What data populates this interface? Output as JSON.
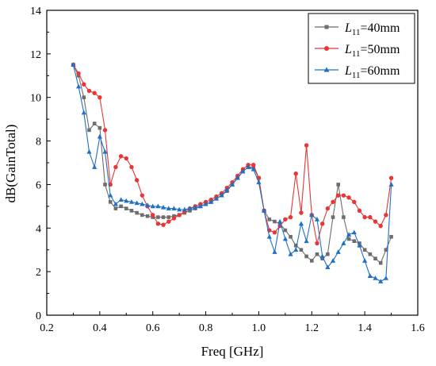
{
  "chart_data": {
    "type": "line",
    "xlabel": "Freq [GHz]",
    "ylabel": "dB(GainTotal)",
    "xlim": [
      0.2,
      1.6
    ],
    "ylim": [
      0,
      14
    ],
    "x_ticks": [
      "0.2",
      "0.4",
      "0.6",
      "0.8",
      "1.0",
      "1.2",
      "1.4",
      "1.6"
    ],
    "y_ticks": [
      "0",
      "2",
      "4",
      "6",
      "8",
      "10",
      "12",
      "14"
    ],
    "grid": false,
    "legend_position": "top-right",
    "series": [
      {
        "name_main": "L",
        "name_sub": "11",
        "name_rest": "=40mm",
        "color": "#6d6d6d",
        "marker": "square",
        "x": [
          0.3,
          0.32,
          0.34,
          0.36,
          0.38,
          0.4,
          0.42,
          0.44,
          0.46,
          0.48,
          0.5,
          0.52,
          0.54,
          0.56,
          0.58,
          0.6,
          0.62,
          0.64,
          0.66,
          0.68,
          0.7,
          0.72,
          0.74,
          0.76,
          0.78,
          0.8,
          0.82,
          0.84,
          0.86,
          0.88,
          0.9,
          0.92,
          0.94,
          0.96,
          0.98,
          1.0,
          1.02,
          1.04,
          1.06,
          1.08,
          1.1,
          1.12,
          1.14,
          1.16,
          1.18,
          1.2,
          1.22,
          1.24,
          1.26,
          1.28,
          1.3,
          1.32,
          1.34,
          1.36,
          1.38,
          1.4,
          1.42,
          1.44,
          1.46,
          1.48,
          1.5
        ],
        "y": [
          11.5,
          11.0,
          10.0,
          8.5,
          8.8,
          8.6,
          6.0,
          5.2,
          4.9,
          5.0,
          4.9,
          4.8,
          4.7,
          4.6,
          4.55,
          4.5,
          4.5,
          4.5,
          4.5,
          4.55,
          4.6,
          4.7,
          4.8,
          4.9,
          5.0,
          5.1,
          5.2,
          5.35,
          5.5,
          5.7,
          6.0,
          6.3,
          6.6,
          6.8,
          6.8,
          6.3,
          4.8,
          4.4,
          4.3,
          4.2,
          3.9,
          3.6,
          3.2,
          3.0,
          2.7,
          2.5,
          2.8,
          2.6,
          2.8,
          4.5,
          6.0,
          4.5,
          3.5,
          3.4,
          3.3,
          3.0,
          2.8,
          2.6,
          2.4,
          3.0,
          3.6
        ]
      },
      {
        "name_main": "L",
        "name_sub": "11",
        "name_rest": "=50mm",
        "color": "#e83535",
        "marker": "circle",
        "x": [
          0.3,
          0.32,
          0.34,
          0.36,
          0.38,
          0.4,
          0.42,
          0.44,
          0.46,
          0.48,
          0.5,
          0.52,
          0.54,
          0.56,
          0.58,
          0.6,
          0.62,
          0.64,
          0.66,
          0.68,
          0.7,
          0.72,
          0.74,
          0.76,
          0.78,
          0.8,
          0.82,
          0.84,
          0.86,
          0.88,
          0.9,
          0.92,
          0.94,
          0.96,
          0.98,
          1.0,
          1.02,
          1.04,
          1.06,
          1.08,
          1.1,
          1.12,
          1.14,
          1.16,
          1.18,
          1.2,
          1.22,
          1.24,
          1.26,
          1.28,
          1.3,
          1.32,
          1.34,
          1.36,
          1.38,
          1.4,
          1.42,
          1.44,
          1.46,
          1.48,
          1.5
        ],
        "y": [
          11.5,
          11.1,
          10.6,
          10.3,
          10.2,
          10.0,
          8.5,
          6.0,
          6.8,
          7.3,
          7.2,
          6.8,
          6.2,
          5.5,
          5.0,
          4.6,
          4.2,
          4.15,
          4.3,
          4.45,
          4.6,
          4.75,
          4.9,
          5.0,
          5.1,
          5.2,
          5.3,
          5.45,
          5.6,
          5.85,
          6.1,
          6.4,
          6.7,
          6.9,
          6.9,
          6.3,
          4.8,
          3.9,
          3.8,
          4.1,
          4.4,
          4.5,
          6.5,
          4.7,
          7.8,
          4.6,
          3.3,
          4.2,
          4.9,
          5.2,
          5.5,
          5.5,
          5.4,
          5.2,
          4.8,
          4.5,
          4.5,
          4.3,
          4.1,
          4.6,
          6.3
        ]
      },
      {
        "name_main": "L",
        "name_sub": "11",
        "name_rest": "=60mm",
        "color": "#1f70c6",
        "marker": "triangle",
        "x": [
          0.3,
          0.32,
          0.34,
          0.36,
          0.38,
          0.4,
          0.42,
          0.44,
          0.46,
          0.48,
          0.5,
          0.52,
          0.54,
          0.56,
          0.58,
          0.6,
          0.62,
          0.64,
          0.66,
          0.68,
          0.7,
          0.72,
          0.74,
          0.76,
          0.78,
          0.8,
          0.82,
          0.84,
          0.86,
          0.88,
          0.9,
          0.92,
          0.94,
          0.96,
          0.98,
          1.0,
          1.02,
          1.04,
          1.06,
          1.08,
          1.1,
          1.12,
          1.14,
          1.16,
          1.18,
          1.2,
          1.22,
          1.24,
          1.26,
          1.28,
          1.3,
          1.32,
          1.34,
          1.36,
          1.38,
          1.4,
          1.42,
          1.44,
          1.46,
          1.48,
          1.5
        ],
        "y": [
          11.5,
          10.5,
          9.3,
          7.5,
          6.8,
          8.2,
          7.5,
          5.5,
          5.1,
          5.3,
          5.25,
          5.2,
          5.15,
          5.1,
          5.05,
          5.0,
          5.0,
          4.95,
          4.9,
          4.9,
          4.85,
          4.85,
          4.9,
          4.95,
          5.0,
          5.1,
          5.2,
          5.35,
          5.5,
          5.75,
          6.0,
          6.3,
          6.6,
          6.8,
          6.7,
          6.1,
          4.8,
          3.6,
          2.9,
          4.3,
          3.5,
          2.8,
          3.0,
          4.2,
          3.4,
          4.6,
          4.4,
          2.7,
          2.2,
          2.5,
          2.9,
          3.3,
          3.7,
          3.8,
          3.2,
          2.5,
          1.8,
          1.7,
          1.55,
          1.7,
          6.0
        ]
      }
    ]
  }
}
